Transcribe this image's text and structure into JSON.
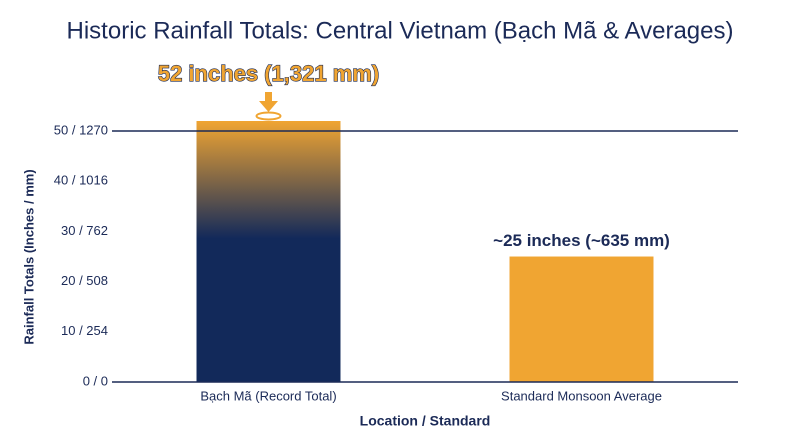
{
  "chart_data": {
    "type": "bar",
    "title": "Historic Rainfall Totals: Central Vietnam (Bạch Mã & Averages)",
    "x_label": "Location / Standard",
    "y_label": "Rainfall Totals (Inches / mm)",
    "categories": [
      "Bạch Mã (Record Total)",
      "Standard Monsoon Average"
    ],
    "values": [
      52,
      25
    ],
    "value_labels": [
      "52 inches (1,321 mm)",
      "~25 inches (~635 mm)"
    ],
    "colors": [
      "#12295a",
      "#f0a532"
    ],
    "ylim": [
      0,
      52
    ],
    "yticks": [
      {
        "value": 0,
        "label": "0 / 0"
      },
      {
        "value": 10,
        "label": "10 / 254"
      },
      {
        "value": 20,
        "label": "20 / 508"
      },
      {
        "value": 30,
        "label": "30 / 762"
      },
      {
        "value": 40,
        "label": "40 / 1016"
      },
      {
        "value": 50,
        "label": "50 / 1270"
      }
    ]
  }
}
